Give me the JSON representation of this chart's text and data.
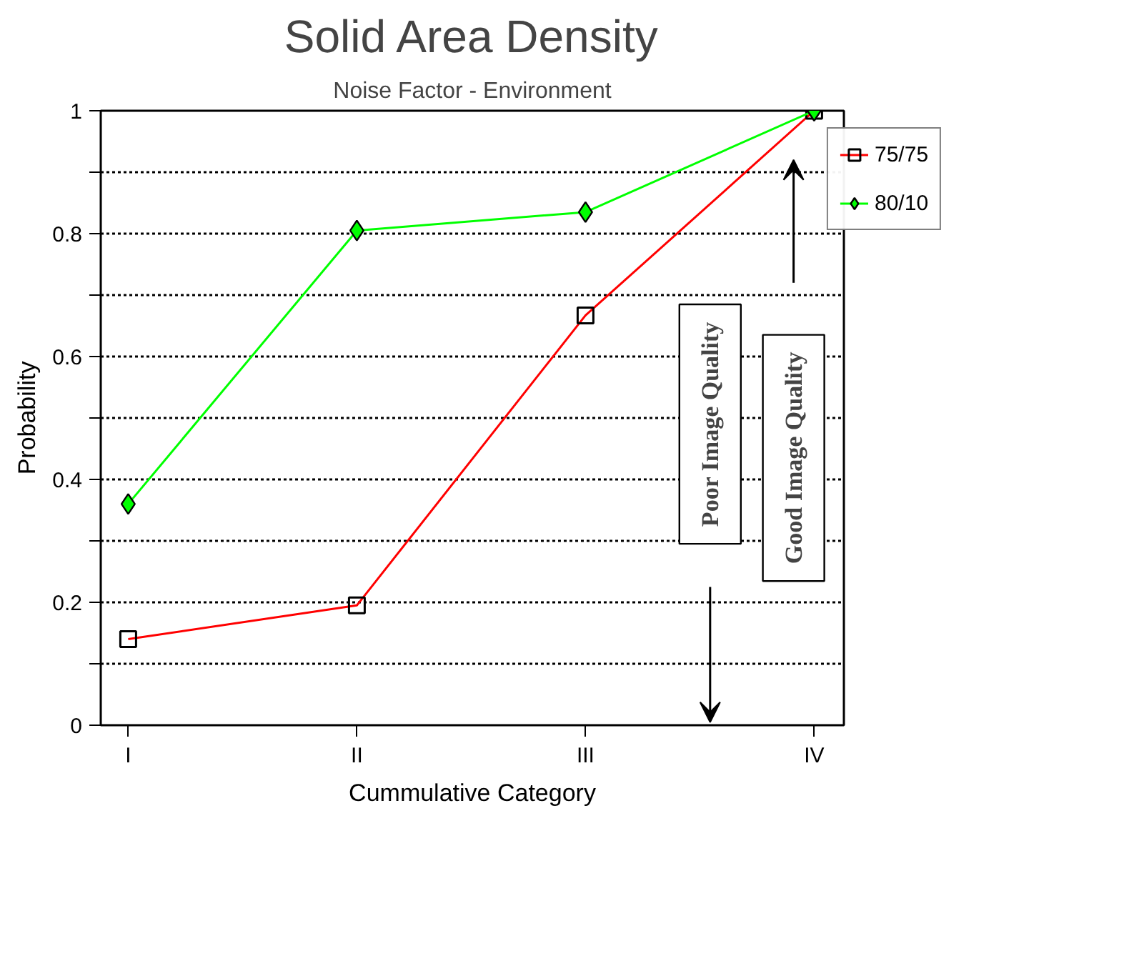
{
  "chart_data": {
    "type": "line",
    "title": "Solid Area Density",
    "subtitle": "Noise Factor - Environment",
    "xlabel": "Cummulative Category",
    "ylabel": "Probability",
    "categories": [
      "I",
      "II",
      "III",
      "IV"
    ],
    "series": [
      {
        "name": "75/75",
        "color": "#ff0000",
        "marker": "square",
        "values": [
          0.14,
          0.195,
          0.667,
          1.0
        ]
      },
      {
        "name": "80/10",
        "color": "#00ff00",
        "marker": "diamond",
        "values": [
          0.36,
          0.805,
          0.835,
          1.0
        ]
      }
    ],
    "ylim": [
      0,
      1
    ],
    "yticks": [
      0,
      {
        "value": 0.1,
        "label": null
      },
      0.2,
      {
        "value": 0.3,
        "label": null
      },
      0.4,
      {
        "value": 0.5,
        "label": null
      },
      0.6,
      {
        "value": 0.7,
        "label": null
      },
      0.8,
      {
        "value": 0.9,
        "label": null
      },
      1
    ],
    "grid": "y",
    "legend": "right",
    "annotations": [
      "Poor Image Quality",
      "Good Image Quality"
    ]
  }
}
